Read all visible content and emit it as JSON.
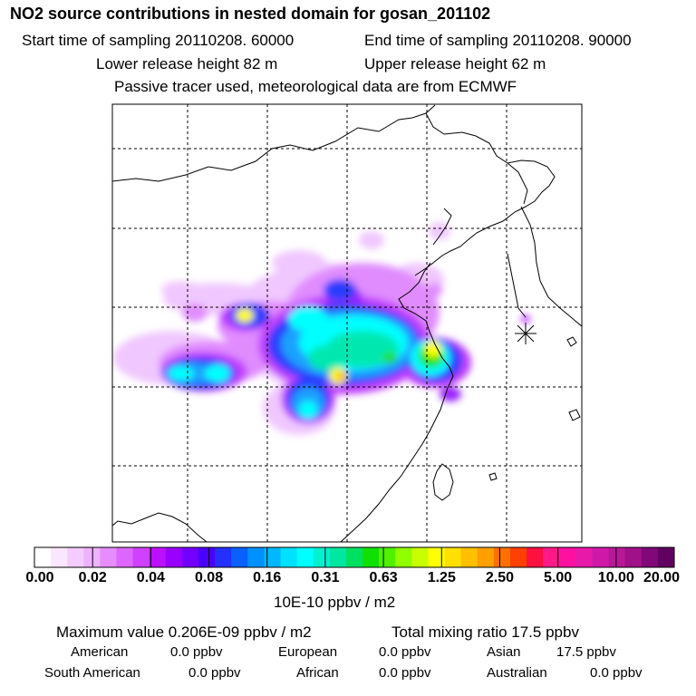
{
  "header": {
    "title": "NO2 source contributions in nested domain for gosan_201102",
    "start_time": "Start time of sampling 20110208. 60000",
    "end_time": "End time of sampling 20110208. 90000",
    "lower_height": "Lower release height   82 m",
    "upper_height": "Upper release height   62 m",
    "tracer_note": "Passive tracer used, meteorological data are from ECMWF"
  },
  "colorbar": {
    "labels": [
      "0.00",
      "0.02",
      "0.04",
      "0.08",
      "0.16",
      "0.31",
      "0.63",
      "1.25",
      "2.50",
      "5.00",
      "10.00",
      "20.00"
    ],
    "colors": [
      "#ffffff",
      "#fbe6ff",
      "#f4ccff",
      "#eeb2ff",
      "#e68cff",
      "#dc66ff",
      "#cf40ff",
      "#bb10ff",
      "#9a00ff",
      "#7300ff",
      "#4a00ff",
      "#2430ff",
      "#0a60ff",
      "#0090ff",
      "#00b8ff",
      "#00e0ff",
      "#00ffff",
      "#00f0d0",
      "#00e8a0",
      "#00e060",
      "#10e000",
      "#50f000",
      "#90ff00",
      "#c8ff00",
      "#ffff00",
      "#ffe000",
      "#ffc000",
      "#ffa000",
      "#ff7000",
      "#ff4000",
      "#ff1040",
      "#ff1a88",
      "#ff10a0",
      "#e818a8",
      "#d018a8",
      "#b81898",
      "#a01088",
      "#800878",
      "#600060"
    ],
    "unit": "10E-10 ppbv / m2"
  },
  "stats": {
    "max_value": "Maximum value  0.206E-09 ppbv / m2",
    "total_mixing": "Total mixing ratio       17.5 ppbv",
    "american_label": "American",
    "american_value": "0.0 ppbv",
    "european_label": "European",
    "european_value": "0.0 ppbv",
    "asian_label": "Asian",
    "asian_value": "17.5 ppbv",
    "south_american_label": "South American",
    "south_american_value": "0.0 ppbv",
    "african_label": "African",
    "african_value": "0.0 ppbv",
    "australian_label": "Australian",
    "australian_value": "0.0 ppbv"
  },
  "map": {
    "receptor_marker": "star-receptor-icon",
    "plume_colors": {
      "light": "#f0c8ff",
      "lilac": "#e08cff",
      "violet": "#c040ff",
      "purple": "#9a20ff",
      "blue": "#2a3cff",
      "sky": "#1aa0ff",
      "cyan": "#00ffff",
      "teal": "#00e8b0",
      "green": "#20e000",
      "yellow": "#ffff00",
      "orange": "#ffb000"
    }
  }
}
